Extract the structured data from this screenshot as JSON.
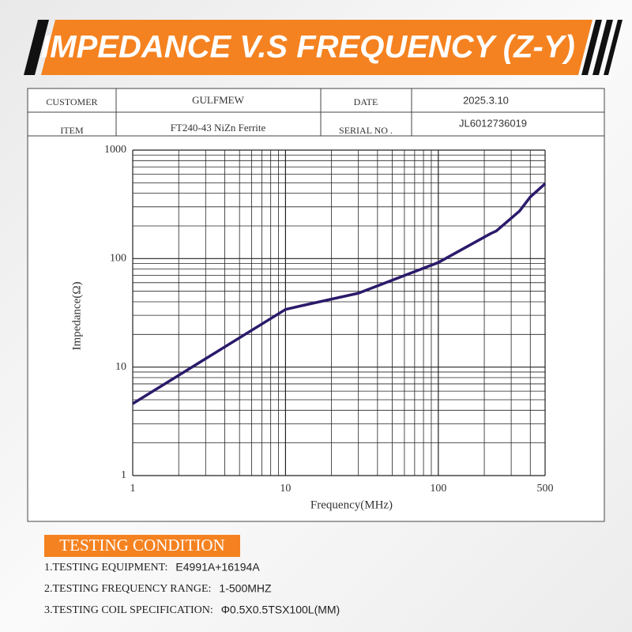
{
  "header": {
    "title": "IMPEDANCE V.S FREQUENCY (Z-Y)"
  },
  "table": {
    "rows": [
      [
        "CUSTOMER",
        "GULFMEW",
        "DATE",
        "2025.3.10"
      ],
      [
        "ITEM",
        "FT240-43 NiZn Ferrite",
        "SERIAL NO .",
        "JL6012736019"
      ]
    ]
  },
  "chart_data": {
    "type": "line",
    "x_label": "Frequency(MHz)",
    "y_label": "Impedance(Ω)",
    "x": [
      1,
      10,
      13,
      30,
      100,
      220,
      240,
      340,
      400,
      500
    ],
    "values": [
      4.6,
      34,
      37,
      48,
      92,
      170,
      180,
      274,
      370,
      490
    ],
    "color": "#2b1a6b",
    "log_x": true,
    "log_y": true,
    "grid": true,
    "xlim": [
      1,
      500
    ],
    "ylim": [
      1,
      1000
    ],
    "xticks": [
      1,
      10,
      100,
      500
    ],
    "yticks": [
      1,
      10,
      100,
      1000
    ],
    "minor_xticks": [
      2,
      3,
      4,
      5,
      6,
      7,
      8,
      9,
      20,
      30,
      40,
      50,
      60,
      70,
      80,
      90,
      200,
      300,
      400
    ],
    "minor_yticks": [
      2,
      3,
      4,
      5,
      6,
      7,
      8,
      9,
      20,
      30,
      40,
      50,
      60,
      70,
      80,
      90,
      200,
      300,
      400,
      500,
      600,
      700,
      800,
      900
    ]
  },
  "testing_condition": {
    "heading": "TESTING CONDITION",
    "items": [
      {
        "label": "1.TESTING EQUIPMENT:",
        "value": "E4991A+16194A"
      },
      {
        "label": "2.TESTING FREQUENCY RANGE:",
        "value": "1-500MHZ"
      },
      {
        "label": "3.TESTING COIL SPECIFICATION:",
        "value": "Φ0.5X0.5TSX100L(MM)"
      }
    ]
  }
}
